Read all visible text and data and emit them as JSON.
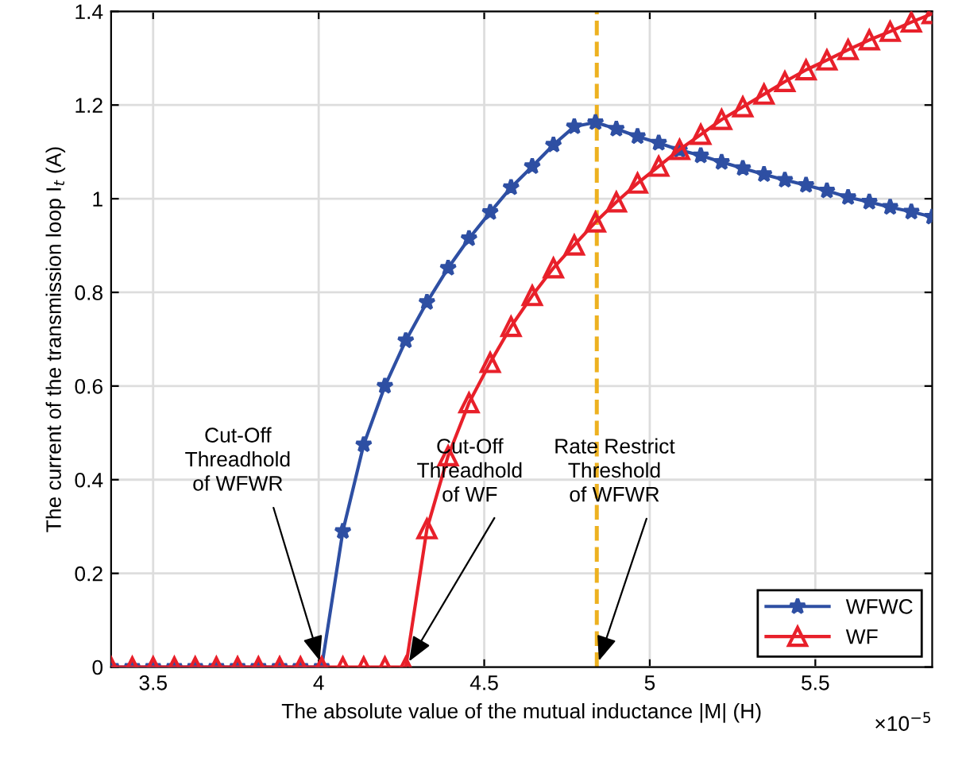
{
  "chart_data": {
    "type": "line",
    "xlabel": "The absolute value of the mutual inductance |M| (H)",
    "ylabel": "The current of the transmission loop I$_{t}$ (A)",
    "x": [
      3.373,
      3.437,
      3.5,
      3.564,
      3.627,
      3.691,
      3.755,
      3.818,
      3.882,
      3.945,
      4.009,
      4.073,
      4.136,
      4.2,
      4.263,
      4.327,
      4.391,
      4.454,
      4.518,
      4.581,
      4.645,
      4.709,
      4.772,
      4.836,
      4.899,
      4.963,
      5.027,
      5.09,
      5.154,
      5.217,
      5.281,
      5.345,
      5.408,
      5.472,
      5.535,
      5.599,
      5.663,
      5.726,
      5.79,
      5.853
    ],
    "series": [
      {
        "name": "WFWC",
        "color": "#2e4fa3",
        "marker": "star",
        "values": [
          0,
          0,
          0,
          0,
          0,
          0,
          0,
          0,
          0,
          0,
          0,
          0.29,
          0.475,
          0.6,
          0.697,
          0.779,
          0.852,
          0.915,
          0.971,
          1.024,
          1.069,
          1.115,
          1.154,
          1.163,
          1.149,
          1.133,
          1.119,
          1.104,
          1.092,
          1.078,
          1.065,
          1.052,
          1.04,
          1.029,
          1.017,
          1.003,
          0.993,
          0.982,
          0.972,
          0.961
        ]
      },
      {
        "name": "WF",
        "color": "#e8202a",
        "marker": "triangle",
        "values": [
          0,
          0,
          0,
          0,
          0,
          0,
          0,
          0,
          0,
          0,
          0,
          0,
          0,
          0,
          0,
          0.295,
          0.451,
          0.564,
          0.65,
          0.727,
          0.793,
          0.852,
          0.901,
          0.95,
          0.993,
          1.033,
          1.069,
          1.105,
          1.137,
          1.169,
          1.196,
          1.223,
          1.25,
          1.275,
          1.296,
          1.318,
          1.339,
          1.357,
          1.377,
          1.395
        ]
      }
    ],
    "xlim": [
      3.373,
      5.853
    ],
    "xticks": [
      3.5,
      4,
      4.5,
      5,
      5.5
    ],
    "ylim": [
      0,
      1.4
    ],
    "yticks": [
      0,
      0.2,
      0.4,
      0.6,
      0.8,
      1,
      1.2,
      1.4
    ],
    "grid": true,
    "legend": "bottom right",
    "ref_lines": [
      {
        "axis": "x",
        "value": 4.84,
        "color": "#edb120",
        "line_style": "dashed",
        "label": "Rate Restrict\nThreshold\nof WFWR"
      }
    ],
    "annotations": [
      {
        "text": "Cut-Off\nThreadhold\nof WFWR",
        "x": 4.009,
        "y": 0
      },
      {
        "text": "Cut-Off\nThreadhold\nof WF",
        "x": 4.263,
        "y": 0
      },
      "×10$^{−5}$"
    ]
  }
}
